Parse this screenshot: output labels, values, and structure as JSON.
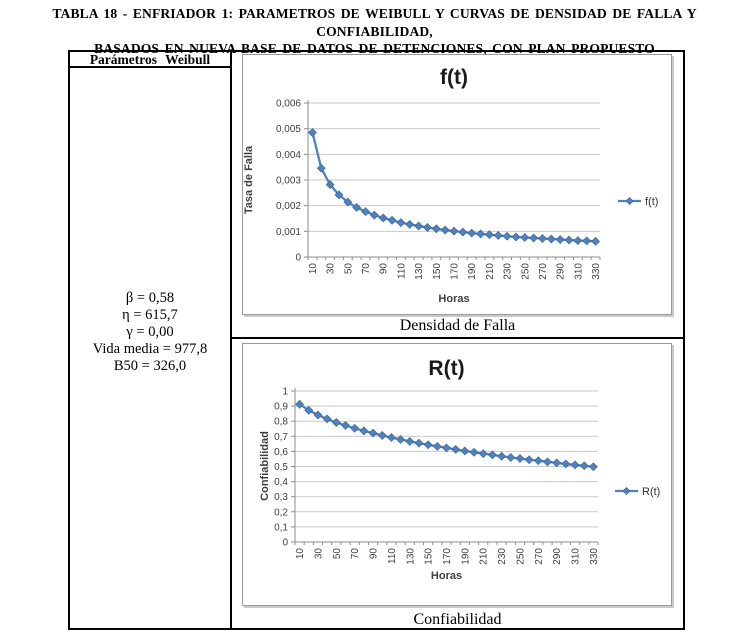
{
  "document": {
    "title_line1": "TABLA 18 - ENFRIADOR 1: PARAMETROS DE WEIBULL Y CURVAS DE DENSIDAD DE FALLA Y CONFIABILIDAD,",
    "title_line2": "BASADOS EN NUEVA BASE DE DATOS DE DETENCIONES, CON PLAN PROPUESTO"
  },
  "parameters_panel": {
    "header": "Parámetros Weibull",
    "lines": [
      "β = 0,58",
      "η = 615,7",
      "γ = 0,00",
      "Vida media = 977,8",
      "B50 = 326,0"
    ]
  },
  "captions": {
    "chart1": "Densidad de Falla",
    "chart2": "Confiabilidad"
  },
  "colors": {
    "series_blue": "#4F81BD",
    "marker_edge": "#3D6394",
    "gridline": "#C9C9C9",
    "axis": "#8E8E8E",
    "tick_text": "#3F3F3F",
    "title_text": "#1A1A1A"
  },
  "chart_data": [
    {
      "type": "line",
      "title": "f(t)",
      "xlabel": "Horas",
      "ylabel": "Tasa de Falla",
      "legend_label": "f(t)",
      "legend_position": "right",
      "marker": "diamond",
      "grid": true,
      "ylim": [
        0,
        0.006
      ],
      "ytick_labels": [
        "0",
        "0,001",
        "0,002",
        "0,003",
        "0,004",
        "0,005",
        "0,006"
      ],
      "x": [
        10,
        20,
        30,
        40,
        50,
        60,
        70,
        80,
        90,
        100,
        110,
        120,
        130,
        140,
        150,
        160,
        170,
        180,
        190,
        200,
        210,
        220,
        230,
        240,
        250,
        260,
        270,
        280,
        290,
        300,
        310,
        320,
        330
      ],
      "xtick_every": 2,
      "y": [
        0.00485,
        0.00346,
        0.00282,
        0.00242,
        0.00214,
        0.00193,
        0.00177,
        0.00163,
        0.00152,
        0.00143,
        0.00134,
        0.00127,
        0.00121,
        0.00115,
        0.0011,
        0.00105,
        0.00101,
        0.00097,
        0.00093,
        0.0009,
        0.00087,
        0.00084,
        0.00081,
        0.00078,
        0.00076,
        0.00074,
        0.00072,
        0.0007,
        0.00068,
        0.00066,
        0.00064,
        0.00063,
        0.00061
      ]
    },
    {
      "type": "line",
      "title": "R(t)",
      "xlabel": "Horas",
      "ylabel": "Confiabilidad",
      "legend_label": "R(t)",
      "legend_position": "right",
      "marker": "diamond",
      "grid": true,
      "ylim": [
        0,
        1
      ],
      "ytick_labels": [
        "0",
        "0,1",
        "0,2",
        "0,3",
        "0,4",
        "0,5",
        "0,6",
        "0,7",
        "0,8",
        "0,9",
        "1"
      ],
      "x": [
        10,
        20,
        30,
        40,
        50,
        60,
        70,
        80,
        90,
        100,
        110,
        120,
        130,
        140,
        150,
        160,
        170,
        180,
        190,
        200,
        210,
        220,
        230,
        240,
        250,
        260,
        270,
        280,
        290,
        300,
        310,
        320,
        330
      ],
      "xtick_every": 2,
      "y": [
        0.912,
        0.872,
        0.841,
        0.815,
        0.792,
        0.772,
        0.753,
        0.736,
        0.721,
        0.706,
        0.692,
        0.679,
        0.666,
        0.655,
        0.644,
        0.633,
        0.623,
        0.613,
        0.603,
        0.594,
        0.585,
        0.577,
        0.568,
        0.56,
        0.553,
        0.545,
        0.538,
        0.531,
        0.524,
        0.517,
        0.511,
        0.505,
        0.498
      ]
    }
  ]
}
